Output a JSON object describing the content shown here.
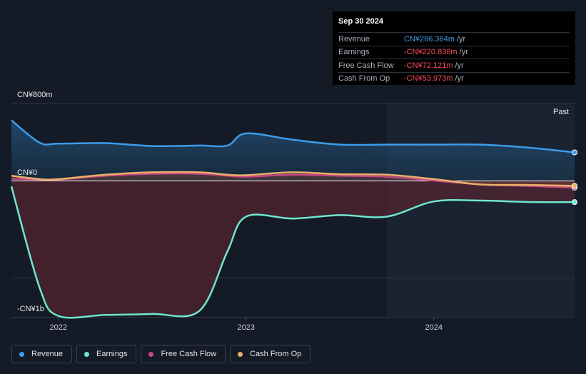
{
  "tooltip": {
    "date": "Sep 30 2024",
    "rows": [
      {
        "label": "Revenue",
        "value": "CN¥286.364m",
        "unit": "/yr",
        "color": "#3d9be9"
      },
      {
        "label": "Earnings",
        "value": "-CN¥220.838m",
        "unit": "/yr",
        "color": "#ff4d5e"
      },
      {
        "label": "Free Cash Flow",
        "value": "-CN¥72.121m",
        "unit": "/yr",
        "color": "#ff4d5e"
      },
      {
        "label": "Cash From Op",
        "value": "-CN¥53.973m",
        "unit": "/yr",
        "color": "#ff4d5e"
      }
    ]
  },
  "legend": [
    {
      "label": "Revenue",
      "color": "#3d9be9"
    },
    {
      "label": "Earnings",
      "color": "#6ee7cf"
    },
    {
      "label": "Free Cash Flow",
      "color": "#c9467f"
    },
    {
      "label": "Cash From Op",
      "color": "#e8b06a"
    }
  ],
  "chart_data": {
    "type": "line",
    "y_labels": {
      "top": "CN¥800m",
      "zero": "CN¥0",
      "bottom": "-CN¥1b"
    },
    "ylim": [
      -1400,
      800
    ],
    "xlim": [
      2021.75,
      2024.75
    ],
    "x_ticks": [
      {
        "label": "2022",
        "value": 2022.0
      },
      {
        "label": "2023",
        "value": 2023.0
      },
      {
        "label": "2024",
        "value": 2024.0
      }
    ],
    "past_label": "Past",
    "past_start": 2023.75,
    "series": [
      {
        "name": "Revenue",
        "color": "#3d9be9",
        "x": [
          2021.75,
          2021.9,
          2022.0,
          2022.25,
          2022.5,
          2022.75,
          2022.9,
          2023.0,
          2023.25,
          2023.5,
          2023.75,
          2024.0,
          2024.25,
          2024.5,
          2024.75
        ],
        "y": [
          620,
          390,
          380,
          385,
          355,
          360,
          360,
          485,
          420,
          370,
          370,
          370,
          370,
          340,
          290
        ]
      },
      {
        "name": "Earnings",
        "color": "#6ee7cf",
        "x": [
          2021.75,
          2021.9,
          2022.0,
          2022.25,
          2022.5,
          2022.75,
          2022.9,
          2023.0,
          2023.25,
          2023.5,
          2023.75,
          2024.0,
          2024.25,
          2024.5,
          2024.75
        ],
        "y": [
          -60,
          -1100,
          -1390,
          -1380,
          -1370,
          -1340,
          -730,
          -370,
          -390,
          -355,
          -370,
          -215,
          -205,
          -220,
          -221
        ]
      },
      {
        "name": "Free Cash Flow",
        "color": "#c9467f",
        "x": [
          2021.75,
          2021.9,
          2022.0,
          2022.25,
          2022.5,
          2022.75,
          2022.9,
          2023.0,
          2023.25,
          2023.5,
          2023.75,
          2024.0,
          2024.25,
          2024.5,
          2024.75
        ],
        "y": [
          20,
          10,
          10,
          50,
          70,
          70,
          50,
          40,
          60,
          50,
          40,
          0,
          -40,
          -55,
          -72
        ]
      },
      {
        "name": "Cash From Op",
        "color": "#e8b06a",
        "x": [
          2021.75,
          2021.9,
          2022.0,
          2022.25,
          2022.5,
          2022.75,
          2022.9,
          2023.0,
          2023.25,
          2023.5,
          2023.75,
          2024.0,
          2024.25,
          2024.5,
          2024.75
        ],
        "y": [
          50,
          15,
          15,
          60,
          85,
          85,
          60,
          55,
          85,
          65,
          60,
          15,
          -40,
          -45,
          -54
        ]
      }
    ]
  }
}
